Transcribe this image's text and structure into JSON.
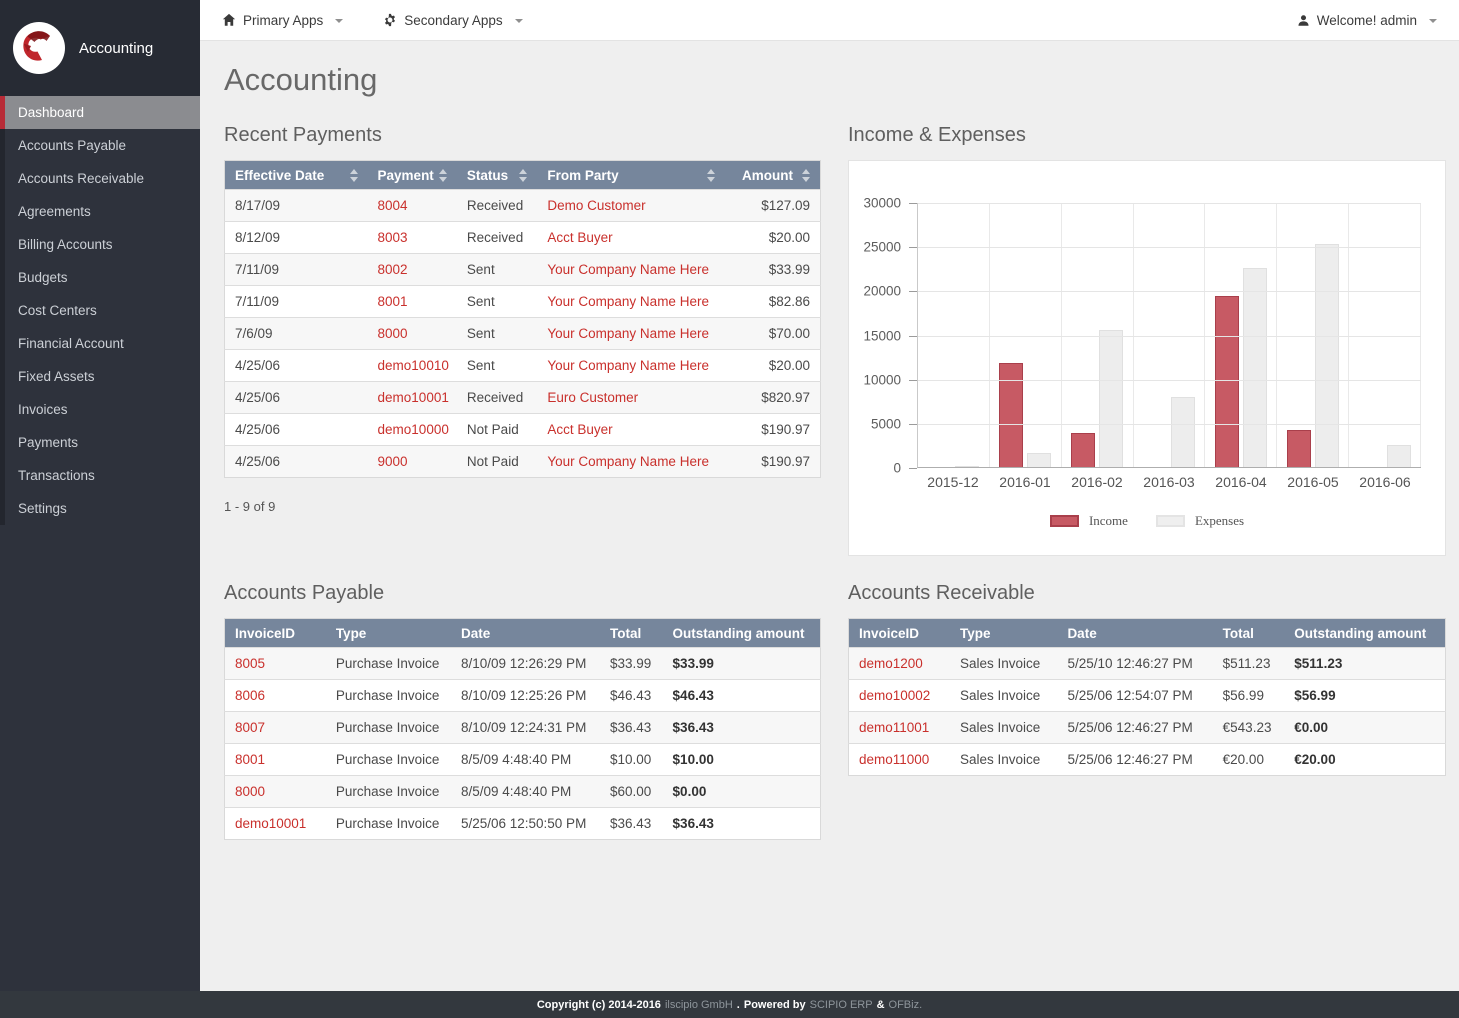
{
  "brand": {
    "app_name": "Accounting"
  },
  "topnav": {
    "primary_apps": "Primary Apps",
    "secondary_apps": "Secondary Apps",
    "user_menu": "Welcome! admin"
  },
  "sidebar": {
    "items": [
      {
        "label": "Dashboard",
        "active": true
      },
      {
        "label": "Accounts Payable",
        "active": false
      },
      {
        "label": "Accounts Receivable",
        "active": false
      },
      {
        "label": "Agreements",
        "active": false
      },
      {
        "label": "Billing Accounts",
        "active": false
      },
      {
        "label": "Budgets",
        "active": false
      },
      {
        "label": "Cost Centers",
        "active": false
      },
      {
        "label": "Financial Account",
        "active": false
      },
      {
        "label": "Fixed Assets",
        "active": false
      },
      {
        "label": "Invoices",
        "active": false
      },
      {
        "label": "Payments",
        "active": false
      },
      {
        "label": "Transactions",
        "active": false
      },
      {
        "label": "Settings",
        "active": false
      }
    ]
  },
  "page": {
    "title": "Accounting"
  },
  "recent_payments": {
    "title": "Recent Payments",
    "columns": [
      "Effective Date",
      "Payment",
      "Status",
      "From Party",
      "Amount"
    ],
    "rows": [
      [
        "8/17/09",
        "8004",
        "Received",
        "Demo Customer",
        "$127.09"
      ],
      [
        "8/12/09",
        "8003",
        "Received",
        "Acct Buyer",
        "$20.00"
      ],
      [
        "7/11/09",
        "8002",
        "Sent",
        "Your Company Name Here",
        "$33.99"
      ],
      [
        "7/11/09",
        "8001",
        "Sent",
        "Your Company Name Here",
        "$82.86"
      ],
      [
        "7/6/09",
        "8000",
        "Sent",
        "Your Company Name Here",
        "$70.00"
      ],
      [
        "4/25/06",
        "demo10010",
        "Sent",
        "Your Company Name Here",
        "$20.00"
      ],
      [
        "4/25/06",
        "demo10001",
        "Received",
        "Euro Customer",
        "$820.97"
      ],
      [
        "4/25/06",
        "demo10000",
        "Not Paid",
        "Acct Buyer",
        "$190.97"
      ],
      [
        "4/25/06",
        "9000",
        "Not Paid",
        "Your Company Name Here",
        "$190.97"
      ]
    ],
    "pagination": "1 - 9 of 9"
  },
  "chart_data": {
    "type": "bar",
    "title": "Income & Expenses",
    "categories": [
      "2015-12",
      "2016-01",
      "2016-02",
      "2016-03",
      "2016-04",
      "2016-05",
      "2016-06"
    ],
    "series": [
      {
        "name": "Income",
        "color": "#c75a64",
        "border_color": "#a93f4b",
        "values": [
          0,
          11800,
          3900,
          0,
          19400,
          4200,
          0
        ]
      },
      {
        "name": "Expenses",
        "color": "#ededed",
        "border_color": "#e0e0e0",
        "values": [
          150,
          1600,
          15500,
          7900,
          22500,
          25200,
          2500
        ]
      }
    ],
    "ylim": [
      0,
      30000
    ],
    "yticks": [
      0,
      5000,
      10000,
      15000,
      20000,
      25000,
      30000
    ],
    "grid": true,
    "legend_position": "bottom"
  },
  "accounts_payable": {
    "title": "Accounts Payable",
    "columns": [
      "InvoiceID",
      "Type",
      "Date",
      "Total",
      "Outstanding amount"
    ],
    "rows": [
      [
        "8005",
        "Purchase Invoice",
        "8/10/09 12:26:29 PM",
        "$33.99",
        "$33.99"
      ],
      [
        "8006",
        "Purchase Invoice",
        "8/10/09 12:25:26 PM",
        "$46.43",
        "$46.43"
      ],
      [
        "8007",
        "Purchase Invoice",
        "8/10/09 12:24:31 PM",
        "$36.43",
        "$36.43"
      ],
      [
        "8001",
        "Purchase Invoice",
        "8/5/09 4:48:40 PM",
        "$10.00",
        "$10.00"
      ],
      [
        "8000",
        "Purchase Invoice",
        "8/5/09 4:48:40 PM",
        "$60.00",
        "$0.00"
      ],
      [
        "demo10001",
        "Purchase Invoice",
        "5/25/06 12:50:50 PM",
        "$36.43",
        "$36.43"
      ]
    ]
  },
  "accounts_receivable": {
    "title": "Accounts Receivable",
    "columns": [
      "InvoiceID",
      "Type",
      "Date",
      "Total",
      "Outstanding amount"
    ],
    "rows": [
      [
        "demo1200",
        "Sales Invoice",
        "5/25/10 12:46:27 PM",
        "$511.23",
        "$511.23"
      ],
      [
        "demo10002",
        "Sales Invoice",
        "5/25/06 12:54:07 PM",
        "$56.99",
        "$56.99"
      ],
      [
        "demo11001",
        "Sales Invoice",
        "5/25/06 12:46:27 PM",
        "€543.23",
        "€0.00"
      ],
      [
        "demo11000",
        "Sales Invoice",
        "5/25/06 12:46:27 PM",
        "€20.00",
        "€20.00"
      ]
    ]
  },
  "footer": {
    "copyright": "Copyright (c) 2014-2016",
    "company": "ilscipio GmbH",
    "dot": ".",
    "powered": "Powered by",
    "scipio": "SCIPIO ERP",
    "amp": "&",
    "ofbiz": "OFBiz."
  },
  "colors": {
    "accent_red": "#c9302c",
    "table_header": "#76869c",
    "sidebar_bg": "#2e323c",
    "active_item_bg": "#8b8c90",
    "active_item_border": "#b82b37",
    "income_bar": "#c75a64",
    "expenses_bar": "#ededed"
  }
}
